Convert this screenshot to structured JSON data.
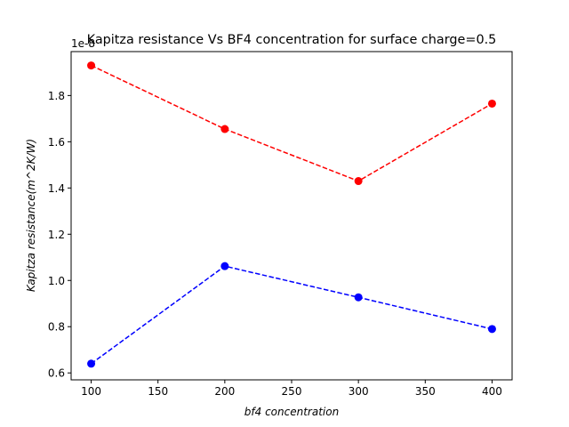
{
  "chart_data": {
    "type": "line",
    "title": "Kapitza resistance Vs BF4 concentration for surface charge=0.5",
    "xlabel": "bf4 concentration",
    "ylabel": "Kapitza resistance(m^2K/W)",
    "y_offset_label": "1e-8",
    "x": [
      100,
      200,
      300,
      400
    ],
    "series": [
      {
        "color": "#ff0000",
        "values": [
          1.93e-08,
          1.655e-08,
          1.43e-08,
          1.765e-08
        ]
      },
      {
        "color": "#0000ff",
        "values": [
          6.4e-09,
          1.062e-08,
          9.27e-09,
          7.9e-09
        ]
      }
    ],
    "xlim": [
      85,
      415
    ],
    "ylim": [
      5.7e-09,
      1.99e-08
    ],
    "xticks": [
      100,
      150,
      200,
      250,
      300,
      350,
      400
    ],
    "xtick_labels": [
      "100",
      "150",
      "200",
      "250",
      "300",
      "350",
      "400"
    ],
    "yticks": [
      6e-09,
      8e-09,
      1e-08,
      1.2e-08,
      1.4e-08,
      1.6e-08,
      1.8e-08
    ],
    "ytick_labels": [
      "0.6",
      "0.8",
      "1.0",
      "1.2",
      "1.4",
      "1.6",
      "1.8"
    ],
    "line_style": "dashed",
    "marker": "circle",
    "grid": false
  }
}
